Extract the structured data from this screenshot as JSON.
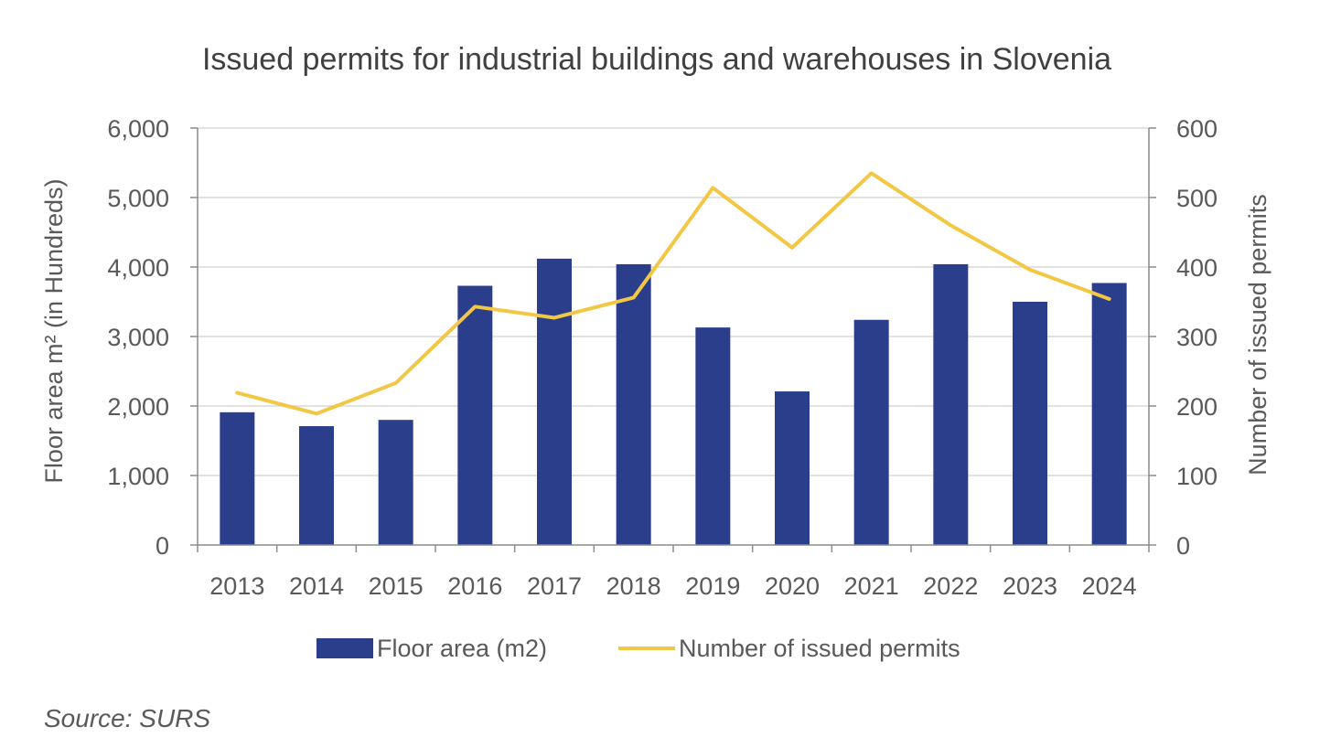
{
  "chart_data": {
    "type": "bar",
    "title": "Issued permits for industrial buildings and warehouses in Slovenia",
    "categories": [
      "2013",
      "2014",
      "2015",
      "2016",
      "2017",
      "2018",
      "2019",
      "2020",
      "2021",
      "2022",
      "2023",
      "2024"
    ],
    "y_left": {
      "label": "Floor area  m² (in Hundreds)",
      "ylim": [
        0,
        6000
      ],
      "ticks": [
        "0",
        "1,000",
        "2,000",
        "3,000",
        "4,000",
        "5,000",
        "6,000"
      ]
    },
    "y_right": {
      "label": "Number of issued permits",
      "ylim": [
        0,
        600
      ],
      "ticks": [
        "0",
        "100",
        "200",
        "300",
        "400",
        "500",
        "600"
      ]
    },
    "series": [
      {
        "name": "Floor area (m2)",
        "type": "bar",
        "axis": "left",
        "color": "#2B3E8C",
        "values": [
          1910,
          1710,
          1800,
          3730,
          4120,
          4040,
          3130,
          2210,
          3240,
          4040,
          3500,
          3770
        ]
      },
      {
        "name": "Number of issued permits",
        "type": "line",
        "axis": "right",
        "color": "#F2C744",
        "values": [
          219,
          189,
          233,
          343,
          327,
          356,
          514,
          428,
          535,
          460,
          396,
          354
        ]
      }
    ],
    "grid": true,
    "legend": "bottom"
  },
  "source": "Source: SURS"
}
